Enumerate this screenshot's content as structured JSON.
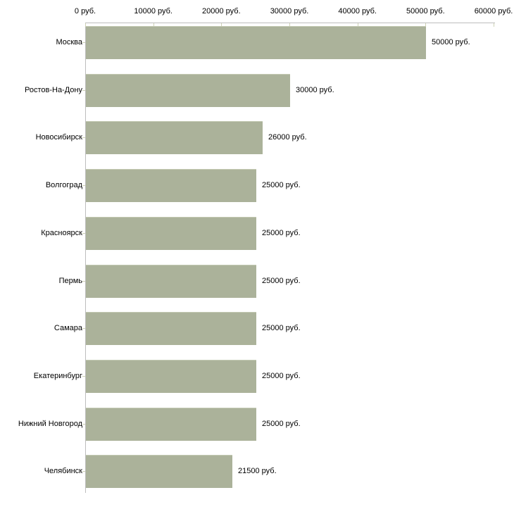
{
  "chart_data": {
    "type": "bar",
    "orientation": "horizontal",
    "categories": [
      "Москва",
      "Ростов-На-Дону",
      "Новосибирск",
      "Волгоград",
      "Красноярск",
      "Пермь",
      "Самара",
      "Екатеринбург",
      "Нижний Новгород",
      "Челябинск"
    ],
    "values": [
      50000,
      30000,
      26000,
      25000,
      25000,
      25000,
      25000,
      25000,
      25000,
      21500
    ],
    "value_labels": [
      "50000 руб.",
      "30000 руб.",
      "26000 руб.",
      "25000 руб.",
      "25000 руб.",
      "25000 руб.",
      "25000 руб.",
      "25000 руб.",
      "25000 руб.",
      "21500 руб."
    ],
    "x_ticks": [
      0,
      10000,
      20000,
      30000,
      40000,
      50000,
      60000
    ],
    "x_tick_labels": [
      "0 руб.",
      "10000 руб.",
      "20000 руб.",
      "30000 руб.",
      "40000 руб.",
      "50000 руб.",
      "60000 руб."
    ],
    "xlim": [
      0,
      60000
    ],
    "unit": "руб.",
    "axis_position": "top",
    "grid": false,
    "legend": false,
    "colors": {
      "bar_fill": "#abb29a",
      "bar_edge": "#c3c9b2",
      "axis_line": "#bdbdbd",
      "tick_mark": "#ced2b6",
      "text": "#000000",
      "background": "#ffffff"
    }
  }
}
